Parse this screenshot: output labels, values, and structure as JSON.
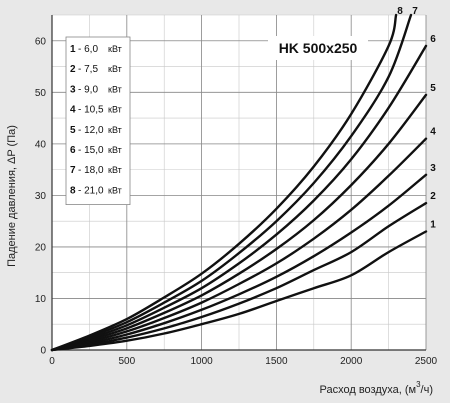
{
  "chart_data": {
    "type": "line",
    "title": "HK 500x250",
    "xlabel": "Расход воздуха, (м",
    "xlabel_sup": "3",
    "xlabel_suffix": "/ч)",
    "ylabel": "Падение давления, ΔP (Па)",
    "xlim": [
      0,
      2500
    ],
    "ylim": [
      0,
      65
    ],
    "xticks": [
      0,
      500,
      1000,
      1500,
      2000,
      2500
    ],
    "yticks": [
      0,
      10,
      20,
      30,
      40,
      50,
      60
    ],
    "grid": true,
    "legend_position": "top-left",
    "series": [
      {
        "name": "1",
        "legend_value": "6,0",
        "legend_unit": "кВт",
        "x": [
          0,
          250,
          500,
          750,
          1000,
          1250,
          1500,
          1750,
          2000,
          2250,
          2500
        ],
        "y": [
          0,
          0.8,
          1.8,
          3.2,
          5.0,
          7.0,
          9.5,
          12.0,
          14.5,
          19.0,
          23.0
        ]
      },
      {
        "name": "2",
        "legend_value": "7,5",
        "legend_unit": "кВт",
        "x": [
          0,
          250,
          500,
          750,
          1000,
          1250,
          1500,
          1750,
          2000,
          2250,
          2500
        ],
        "y": [
          0,
          1.0,
          2.4,
          4.2,
          6.4,
          9.0,
          12.0,
          15.5,
          19.0,
          24.0,
          28.5
        ]
      },
      {
        "name": "3",
        "legend_value": "9,0",
        "legend_unit": "кВт",
        "x": [
          0,
          250,
          500,
          750,
          1000,
          1250,
          1500,
          1750,
          2000,
          2250,
          2500
        ],
        "y": [
          0,
          1.3,
          3.0,
          5.2,
          7.8,
          10.8,
          14.2,
          18.2,
          22.8,
          28.0,
          34.0
        ]
      },
      {
        "name": "4",
        "legend_value": "10,5",
        "legend_unit": "кВт",
        "x": [
          0,
          250,
          500,
          750,
          1000,
          1250,
          1500,
          1750,
          2000,
          2250,
          2500
        ],
        "y": [
          0,
          1.6,
          3.6,
          6.2,
          9.2,
          12.8,
          16.8,
          21.6,
          27.2,
          33.8,
          41.0
        ]
      },
      {
        "name": "5",
        "legend_value": "12,0",
        "legend_unit": "кВт",
        "x": [
          0,
          250,
          500,
          750,
          1000,
          1250,
          1500,
          1750,
          2000,
          2250,
          2500
        ],
        "y": [
          0,
          1.9,
          4.2,
          7.2,
          10.6,
          14.8,
          19.6,
          25.2,
          32.0,
          40.0,
          49.5
        ]
      },
      {
        "name": "6",
        "legend_value": "15,0",
        "legend_unit": "кВт",
        "x": [
          0,
          250,
          500,
          750,
          1000,
          1250,
          1500,
          1750,
          2000,
          2250,
          2500
        ],
        "y": [
          0,
          2.2,
          4.8,
          8.2,
          12.0,
          16.8,
          22.4,
          29.0,
          37.0,
          47.0,
          59.0
        ]
      },
      {
        "name": "7",
        "legend_value": "18,0",
        "legend_unit": "кВт",
        "x": [
          0,
          250,
          500,
          750,
          1000,
          1250,
          1500,
          1750,
          2000,
          2250,
          2400
        ],
        "y": [
          0,
          2.5,
          5.4,
          9.2,
          13.4,
          18.8,
          25.0,
          32.4,
          41.5,
          53.0,
          65.0
        ]
      },
      {
        "name": "8",
        "legend_value": "21,0",
        "legend_unit": "кВт",
        "x": [
          0,
          250,
          500,
          750,
          1000,
          1250,
          1500,
          1750,
          2000,
          2250,
          2300
        ],
        "y": [
          0,
          2.8,
          6.0,
          10.2,
          14.8,
          20.6,
          27.4,
          35.6,
          45.8,
          59.0,
          65.0
        ]
      }
    ]
  }
}
